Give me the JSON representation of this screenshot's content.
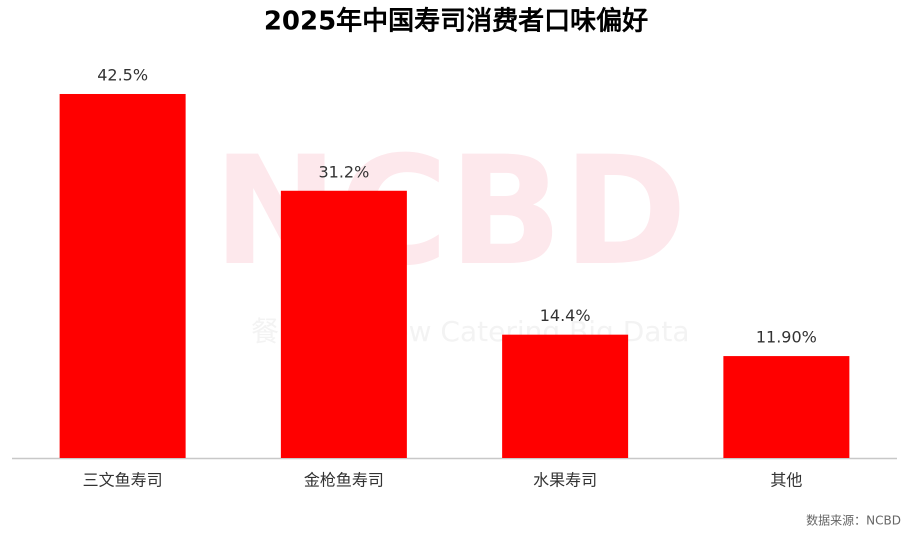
{
  "chart_data": {
    "type": "bar",
    "title": "2025年中国寿司消费者口味偏好",
    "categories": [
      "三文鱼寿司",
      "金枪鱼寿司",
      "水果寿司",
      "其他"
    ],
    "values": [
      42.5,
      31.2,
      14.4,
      11.9
    ],
    "value_labels": [
      "42.5%",
      "31.2%",
      "14.4%",
      "11.90%"
    ],
    "color": "#ff0000",
    "watermark": [
      "NCBD",
      "餐",
      "New Catering Big Data"
    ],
    "source": "数据来源：NCBD"
  }
}
